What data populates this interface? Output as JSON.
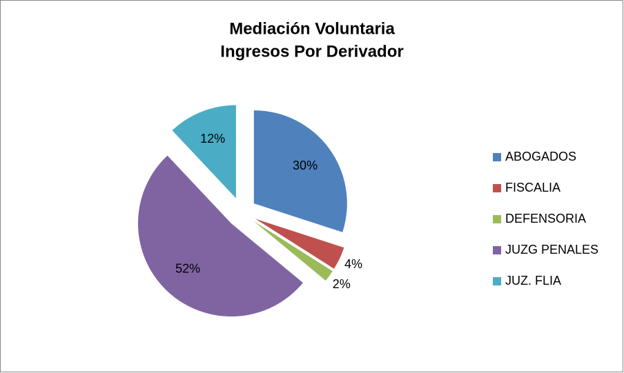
{
  "chart_data": {
    "type": "pie",
    "title": "Mediación Voluntaria",
    "subtitle": "Ingresos  Por Derivador",
    "categories": [
      "ABOGADOS",
      "FISCALIA",
      "DEFENSORIA",
      "JUZG PENALES",
      "JUZ. FLIA"
    ],
    "values": [
      30,
      4,
      2,
      52,
      12
    ],
    "value_labels": [
      "30%",
      "4%",
      "2%",
      "52%",
      "12%"
    ],
    "colors": [
      "#4f81bd",
      "#c0504d",
      "#9bbb59",
      "#8064a2",
      "#4bacc6"
    ],
    "exploded": true,
    "legend": "right"
  }
}
